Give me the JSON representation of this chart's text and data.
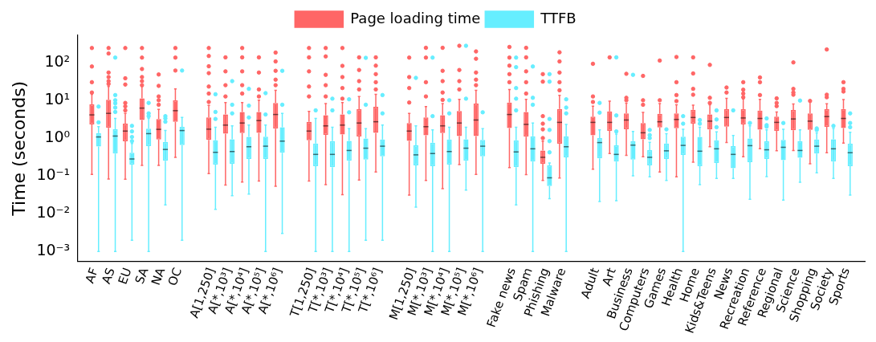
{
  "chart_data": {
    "type": "box",
    "ylabel": "Time (seconds)",
    "log": true,
    "ylim": [
      0.00055,
      520
    ],
    "yticks": [
      {
        "value": 0.001,
        "label": "10⁻³"
      },
      {
        "value": 0.01,
        "label": "10⁻²"
      },
      {
        "value": 0.1,
        "label": "10⁻¹"
      },
      {
        "value": 1,
        "label": "10⁰"
      },
      {
        "value": 10,
        "label": "10¹"
      },
      {
        "value": 100,
        "label": "10²"
      }
    ],
    "legend": "top",
    "marker": "circle",
    "grid": false,
    "categories": [
      "AF",
      "AS",
      "EU",
      "SA",
      "NA",
      "OC",
      null,
      "A[1,250]",
      "A[*,10³]",
      "A[*,10⁴]",
      "A[*,10⁵]",
      "A[*,10⁶]",
      null,
      "T[1,250]",
      "T[*,10³]",
      "T[*,10⁴]",
      "T[*,10⁵]",
      "T[*,10⁶]",
      null,
      "M[1,250]",
      "M[*,10³]",
      "M[*,10⁴]",
      "M[*,10⁵]",
      "M[*,10⁶]",
      null,
      "Fake news",
      "Spam",
      "Phishing",
      "Malware",
      null,
      "Adult",
      "Art",
      "Business",
      "Computers",
      "Games",
      "Health",
      "Home",
      "Kids&Teens",
      "News",
      "Recreation",
      "Reference",
      "Regional",
      "Science",
      "Shopping",
      "Society",
      "Sports"
    ],
    "series": [
      {
        "name": "Page loading time",
        "color": "#ff6666",
        "boxes": [
          {
            "low": 0.11,
            "q1": 2.3,
            "median": 4.1,
            "q3": 7.8,
            "high": 14.4,
            "outliers": [
              16,
              30,
              78,
              240
            ]
          },
          {
            "low": 0.083,
            "q1": 1.87,
            "median": 4.5,
            "q3": 10.3,
            "high": 23,
            "outliers": [
              27,
              32,
              41,
              54,
              172,
              240
            ]
          },
          {
            "low": 0.082,
            "q1": 0.82,
            "median": 1.53,
            "q3": 2.4,
            "high": 4.5,
            "outliers": [
              5.4,
              6.9,
              8.5,
              26,
              38,
              240
            ]
          },
          {
            "low": 0.19,
            "q1": 3.0,
            "median": 6.2,
            "q3": 11.2,
            "high": 23,
            "outliers": [
              25,
              32,
              41,
              67,
              134,
              240
            ]
          },
          {
            "low": 0.19,
            "q1": 0.92,
            "median": 1.7,
            "q3": 3.2,
            "high": 5.7,
            "outliers": [
              7.6,
              10,
              12.6,
              24,
              48
            ]
          },
          {
            "low": 0.31,
            "q1": 2.7,
            "median": 5.3,
            "q3": 9.9,
            "high": 20,
            "outliers": [
              61,
              134,
              240
            ]
          },
          null,
          {
            "low": 0.115,
            "q1": 0.9,
            "median": 1.72,
            "q3": 3.5,
            "high": 7.3,
            "outliers": [
              9,
              15,
              23,
              52,
              79,
              148,
              240
            ]
          },
          {
            "low": 0.057,
            "q1": 1.31,
            "median": 2.2,
            "q3": 4.2,
            "high": 8.7,
            "outliers": [
              12.6,
              25,
              58,
              136
            ]
          },
          {
            "low": 0.069,
            "q1": 1.36,
            "median": 2.5,
            "q3": 4.9,
            "high": 8.7,
            "outliers": [
              15,
              25,
              58,
              136,
              240
            ]
          },
          {
            "low": 0.073,
            "q1": 1.38,
            "median": 2.9,
            "q3": 4.9,
            "high": 10.1,
            "outliers": [
              12.6,
              19.3,
              54,
              136
            ]
          },
          {
            "low": 0.053,
            "q1": 1.78,
            "median": 4.2,
            "q3": 8.5,
            "high": 18.3,
            "outliers": [
              25,
              35,
              60,
              106,
              182
            ]
          },
          null,
          {
            "low": 0.073,
            "q1": 0.87,
            "median": 1.53,
            "q3": 2.7,
            "high": 5.1,
            "outliers": [
              12.6,
              23,
              58,
              136,
              240
            ]
          },
          {
            "low": 0.059,
            "q1": 1.22,
            "median": 2.1,
            "q3": 4.0,
            "high": 8.2,
            "outliers": [
              12.6,
              25,
              47,
              144,
              240
            ]
          },
          {
            "low": 0.032,
            "q1": 1.25,
            "median": 2.2,
            "q3": 4.2,
            "high": 8.7,
            "outliers": [
              11,
              21,
              41,
              81,
              240
            ]
          },
          {
            "low": 0.078,
            "q1": 1.1,
            "median": 2.5,
            "q3": 5.8,
            "high": 12.6,
            "outliers": [
              19.3,
              32,
              63,
              136
            ]
          },
          {
            "low": 0.126,
            "q1": 1.38,
            "median": 2.7,
            "q3": 6.7,
            "high": 14.4,
            "outliers": [
              19.3,
              30,
              49,
              82,
              136
            ]
          },
          null,
          {
            "low": 0.031,
            "q1": 0.84,
            "median": 1.53,
            "q3": 2.5,
            "high": 4.5,
            "outliers": [
              8.7,
              21,
              41,
              134
            ]
          },
          {
            "low": 0.076,
            "q1": 1.19,
            "median": 2.0,
            "q3": 3.5,
            "high": 6.8,
            "outliers": [
              12.6,
              30,
              134,
              243
            ]
          },
          {
            "low": 0.046,
            "q1": 1.36,
            "median": 2.1,
            "q3": 4.0,
            "high": 8.2,
            "outliers": [
              10.2,
              16,
              32,
              60,
              243
            ]
          },
          {
            "low": 0.2,
            "q1": 1.13,
            "median": 2.5,
            "q3": 5.2,
            "high": 10.6,
            "outliers": [
              19.3,
              32,
              63,
              275
            ]
          },
          {
            "low": 0.11,
            "q1": 1.13,
            "median": 3.0,
            "q3": 8.2,
            "high": 18.3,
            "outliers": [
              25,
              35,
              54,
              125,
              195
            ]
          },
          null,
          {
            "low": 0.165,
            "q1": 1.84,
            "median": 4.2,
            "q3": 8.7,
            "high": 19.3,
            "outliers": [
              30,
              49,
              82,
              134,
              256
            ]
          },
          {
            "low": 0.108,
            "q1": 1.09,
            "median": 2.3,
            "q3": 4.9,
            "high": 10.6,
            "outliers": [
              15,
              30,
              58,
              136,
              243
            ]
          },
          {
            "low": 0.076,
            "q1": 0.21,
            "median": 0.31,
            "q3": 0.47,
            "high": 0.83,
            "outliers": [
              1.0,
              1.7,
              2.4,
              3.8,
              31,
              49
            ]
          },
          {
            "low": 0.088,
            "q1": 0.71,
            "median": 2.6,
            "q3": 5.9,
            "high": 13.5,
            "outliers": [
              18.3,
              30,
              54,
              106,
              185
            ]
          },
          null,
          {
            "low": 0.15,
            "q1": 1.19,
            "median": 2.6,
            "q3": 3.7,
            "high": 7.0,
            "outliers": [
              9.0,
              12.6,
              92
            ]
          },
          {
            "low": 0.39,
            "q1": 1.56,
            "median": 2.6,
            "q3": 5.1,
            "high": 9.4,
            "outliers": [
              136
            ]
          },
          {
            "low": 0.35,
            "q1": 1.72,
            "median": 3.0,
            "q3": 4.5,
            "high": 8.4,
            "outliers": [
              10,
              11.6,
              50
            ]
          },
          {
            "low": 0.32,
            "q1": 0.93,
            "median": 1.38,
            "q3": 2.5,
            "high": 4.8,
            "outliers": [
              7.6,
              10,
              44
            ]
          },
          {
            "low": 0.126,
            "q1": 1.91,
            "median": 2.7,
            "q3": 4.4,
            "high": 8.2,
            "outliers": [
              10,
              112
            ]
          },
          {
            "low": 0.094,
            "q1": 1.81,
            "median": 3.1,
            "q3": 4.5,
            "high": 7.6,
            "outliers": [
              9.5,
              13.7,
              30,
              139
            ]
          },
          {
            "low": 0.23,
            "q1": 2.4,
            "median": 3.5,
            "q3": 5.6,
            "high": 7.4,
            "outliers": [
              14,
              20,
              51,
              136
            ]
          },
          {
            "low": 0.59,
            "q1": 1.69,
            "median": 2.8,
            "q3": 4.2,
            "high": 7.6,
            "outliers": [
              8.5,
              11.6,
              86
            ]
          },
          {
            "low": 0.76,
            "q1": 2.0,
            "median": 3.5,
            "q3": 5.8,
            "high": 11.2,
            "outliers": [
              16,
              21.7
            ]
          },
          {
            "low": 0.32,
            "q1": 2.3,
            "median": 3.4,
            "q3": 5.8,
            "high": 10.8,
            "outliers": [
              12,
              15,
              19,
              30
            ]
          },
          {
            "low": 0.52,
            "q1": 1.66,
            "median": 3.3,
            "q3": 5.3,
            "high": 10.6,
            "outliers": [
              13.7,
              30,
              40
            ]
          },
          {
            "low": 0.46,
            "q1": 1.56,
            "median": 2.6,
            "q3": 3.7,
            "high": 4.9,
            "outliers": [
              7.0,
              8.5,
              11.2
            ]
          },
          {
            "low": 0.47,
            "q1": 1.61,
            "median": 3.2,
            "q3": 5.5,
            "high": 8.0,
            "outliers": [
              14,
              16,
              20,
              100
            ]
          },
          {
            "low": 0.21,
            "q1": 1.64,
            "median": 2.8,
            "q3": 4.5,
            "high": 9.1,
            "outliers": [
              9.6
            ]
          },
          {
            "low": 0.41,
            "q1": 1.97,
            "median": 3.7,
            "q3": 5.8,
            "high": 8.1,
            "outliers": [
              12,
              14,
              220
            ]
          },
          {
            "low": 0.74,
            "q1": 1.84,
            "median": 3.3,
            "q3": 5.9,
            "high": 10.4,
            "outliers": [
              17,
              20,
              30
            ]
          }
        ]
      },
      {
        "name": "TTFB",
        "color": "#66eeff",
        "boxes": [
          {
            "low": 0.001,
            "q1": 0.6,
            "median": 1.07,
            "q3": 1.36,
            "high": 2.0,
            "outliers": [
              2.6,
              6.8
            ]
          },
          {
            "low": 0.001,
            "q1": 0.39,
            "median": 1.13,
            "q3": 1.7,
            "high": 3.3,
            "outliers": [
              4.9,
              6.4,
              8.3,
              10,
              13.7,
              134
            ]
          },
          {
            "low": 0.002,
            "q1": 0.2,
            "median": 0.28,
            "q3": 0.41,
            "high": 0.72,
            "outliers": [
              0.83,
              1.07,
              1.5,
              2.1
            ]
          },
          {
            "low": 0.001,
            "q1": 0.61,
            "median": 1.31,
            "q3": 1.78,
            "high": 3.3,
            "outliers": [
              3.8,
              4.5,
              8.5
            ]
          },
          {
            "low": 0.017,
            "q1": 0.25,
            "median": 0.5,
            "q3": 0.79,
            "high": 1.58,
            "outliers": [
              2.7,
              3.3,
              3.8
            ]
          },
          {
            "low": 0.002,
            "q1": 0.65,
            "median": 1.58,
            "q3": 1.98,
            "high": 3.5,
            "outliers": [
              61
            ]
          },
          null,
          {
            "low": 0.013,
            "q1": 0.2,
            "median": 0.42,
            "q3": 0.87,
            "high": 1.94,
            "outliers": [
              3.2,
              4.9,
              14.4
            ]
          },
          {
            "low": 0.03,
            "q1": 0.21,
            "median": 0.44,
            "q3": 0.93,
            "high": 2.1,
            "outliers": [
              4.5,
              7.6,
              32
            ]
          },
          {
            "low": 0.033,
            "q1": 0.28,
            "median": 0.59,
            "q3": 1.07,
            "high": 2.2,
            "outliers": [
              3.5,
              7.2,
              20
            ]
          },
          {
            "low": 0.001,
            "q1": 0.28,
            "median": 0.61,
            "q3": 1.09,
            "high": 2.2,
            "outliers": [
              4.2,
              15.4
            ]
          },
          {
            "low": 0.003,
            "q1": 0.41,
            "median": 0.83,
            "q3": 1.94,
            "high": 4.5,
            "outliers": [
              7.6,
              60
            ]
          },
          null,
          {
            "low": 0.001,
            "q1": 0.18,
            "median": 0.37,
            "q3": 0.72,
            "high": 3.3,
            "outliers": [
              5.4
            ]
          },
          {
            "low": 0.001,
            "q1": 0.17,
            "median": 0.37,
            "q3": 0.83,
            "high": 1.94,
            "outliers": [
              5.4,
              11
            ]
          },
          {
            "low": 0.001,
            "q1": 0.25,
            "median": 0.47,
            "q3": 0.84,
            "high": 1.78,
            "outliers": [
              4.8,
              10.6
            ]
          },
          {
            "low": 0.002,
            "q1": 0.27,
            "median": 0.54,
            "q3": 0.97,
            "high": 1.78,
            "outliers": [
              7.6,
              132
            ]
          },
          {
            "low": 0.002,
            "q1": 0.33,
            "median": 0.61,
            "q3": 0.92,
            "high": 2.2,
            "outliers": [
              4.5,
              13.7
            ]
          },
          null,
          {
            "low": 0.015,
            "q1": 0.19,
            "median": 0.36,
            "q3": 0.64,
            "high": 2.1,
            "outliers": [
              39
            ]
          },
          {
            "low": 0.001,
            "q1": 0.18,
            "median": 0.39,
            "q3": 0.75,
            "high": 1.64,
            "outliers": [
              3.8,
              134
            ]
          },
          {
            "low": 0.001,
            "q1": 0.2,
            "median": 0.44,
            "q3": 0.92,
            "high": 1.94,
            "outliers": [
              4.5,
              10
            ]
          },
          {
            "low": 0.042,
            "q1": 0.25,
            "median": 0.54,
            "q3": 0.93,
            "high": 1.94,
            "outliers": [
              11,
              275
            ]
          },
          {
            "low": 0.001,
            "q1": 0.33,
            "median": 0.61,
            "q3": 0.9,
            "high": 1.78,
            "outliers": [
              4.8
            ]
          },
          null,
          {
            "low": 0.017,
            "q1": 0.17,
            "median": 0.43,
            "q3": 0.87,
            "high": 1.94,
            "outliers": [
              5.4,
              11,
              21,
              75,
              134
            ]
          },
          {
            "low": 0.001,
            "q1": 0.24,
            "median": 0.52,
            "q3": 1.11,
            "high": 2.5,
            "outliers": [
              7.6,
              11.6,
              78
            ]
          },
          {
            "low": 0.025,
            "q1": 0.054,
            "median": 0.089,
            "q3": 0.19,
            "high": 0.22,
            "outliers": [
              0.42,
              0.83,
              1.64,
              3.2,
              31,
              49
            ]
          },
          {
            "low": 0.001,
            "q1": 0.31,
            "median": 0.59,
            "q3": 1.11,
            "high": 2.3,
            "outliers": [
              4.5,
              6.4,
              10.6
            ]
          },
          null,
          {
            "low": 0.021,
            "q1": 0.29,
            "median": 0.76,
            "q3": 1.0,
            "high": 1.64,
            "outliers": [
              4.7,
              8.5
            ]
          },
          {
            "low": 0.022,
            "q1": 0.24,
            "median": 0.37,
            "q3": 0.64,
            "high": 1.27,
            "outliers": [
              1.5,
              3.96,
              136
            ]
          },
          {
            "low": 0.1,
            "q1": 0.27,
            "median": 0.65,
            "q3": 0.83,
            "high": 1.5,
            "outliers": [
              47
            ]
          },
          {
            "low": 0.094,
            "q1": 0.19,
            "median": 0.31,
            "q3": 0.48,
            "high": 0.77,
            "outliers": [
              1.0,
              1.2,
              1.64
            ]
          },
          {
            "low": 0.076,
            "q1": 0.28,
            "median": 0.46,
            "q3": 0.72,
            "high": 1.31,
            "outliers": [
              1.7
            ]
          },
          {
            "low": 0.001,
            "q1": 0.36,
            "median": 0.64,
            "q3": 1.09,
            "high": 1.7,
            "outliers": [
              2.4,
              3.8
            ]
          },
          {
            "low": 0.059,
            "q1": 0.18,
            "median": 0.45,
            "q3": 1.07,
            "high": 1.94,
            "outliers": [
              2.4,
              3.0
            ]
          },
          {
            "low": 0.086,
            "q1": 0.22,
            "median": 0.52,
            "q3": 0.87,
            "high": 1.45,
            "outliers": [
              1.94,
              3.1,
              5.4
            ]
          },
          {
            "low": 0.086,
            "q1": 0.16,
            "median": 0.37,
            "q3": 0.61,
            "high": 1.17,
            "outliers": [
              5.4
            ]
          },
          {
            "low": 0.024,
            "q1": 0.23,
            "median": 0.63,
            "q3": 0.97,
            "high": 2.1,
            "outliers": [
              2.5
            ]
          },
          {
            "low": 0.096,
            "q1": 0.28,
            "median": 0.49,
            "q3": 0.82,
            "high": 1.64,
            "outliers": [
              2.0,
              2.2,
              3.3
            ]
          },
          {
            "low": 0.023,
            "q1": 0.26,
            "median": 0.57,
            "q3": 0.89,
            "high": 1.72,
            "outliers": [
              2.5
            ]
          },
          {
            "low": 0.068,
            "q1": 0.3,
            "median": 0.47,
            "q3": 0.83,
            "high": 1.64,
            "outliers": [
              9.8
            ]
          },
          {
            "low": 0.12,
            "q1": 0.39,
            "median": 0.61,
            "q3": 0.92,
            "high": 1.38,
            "outliers": [
              1.64,
              1.8
            ]
          },
          {
            "low": 0.086,
            "q1": 0.24,
            "median": 0.52,
            "q3": 0.93,
            "high": 1.8,
            "outliers": [
              2.1
            ]
          },
          {
            "low": 0.031,
            "q1": 0.18,
            "median": 0.41,
            "q3": 0.71,
            "high": 1.43,
            "outliers": [
              1.94,
              2.5,
              4.5
            ]
          }
        ]
      }
    ]
  }
}
